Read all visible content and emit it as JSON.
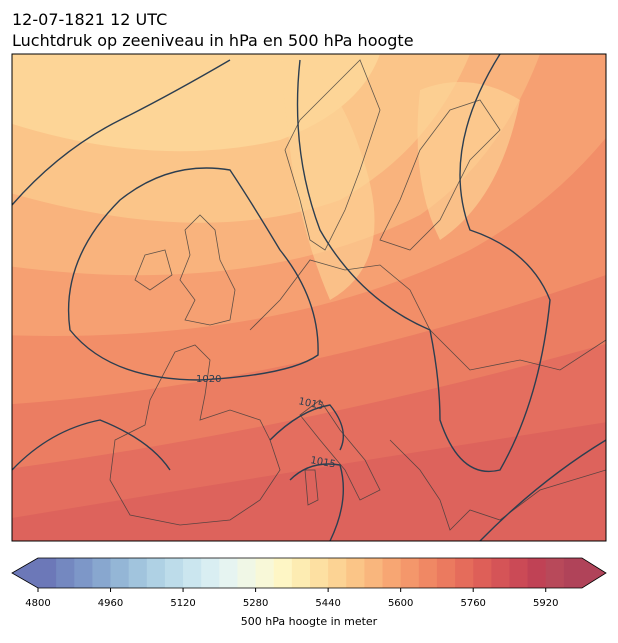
{
  "header": {
    "date": "12-07-1821 12 UTC",
    "title": "Luchtdruk op zeeniveau in hPa en 500 hPa hoogte"
  },
  "contour_labels": [
    "1020",
    "1015",
    "1015"
  ],
  "colorbar": {
    "label": "500 hPa hoogte in meter",
    "lim": [
      4800,
      6000
    ],
    "ticks": [
      4800,
      4960,
      5120,
      5280,
      5440,
      5600,
      5760,
      5920
    ],
    "colors": [
      "#6c78b8",
      "#7488c0",
      "#7d97c8",
      "#88a7cf",
      "#94b6d6",
      "#a1c4dd",
      "#afd1e4",
      "#bddcea",
      "#cbe6ef",
      "#d9eef2",
      "#e6f4f1",
      "#f0f7e6",
      "#f8f8d8",
      "#fef6c5",
      "#fdecb2",
      "#fde0a2",
      "#fcd394",
      "#fbc587",
      "#f9b67d",
      "#f7a673",
      "#f4976b",
      "#f08864",
      "#eb7a5f",
      "#e56c5b",
      "#de5f58",
      "#d55457",
      "#cb4a56",
      "#c04255",
      "#b8495a",
      "#b04359"
    ]
  }
}
